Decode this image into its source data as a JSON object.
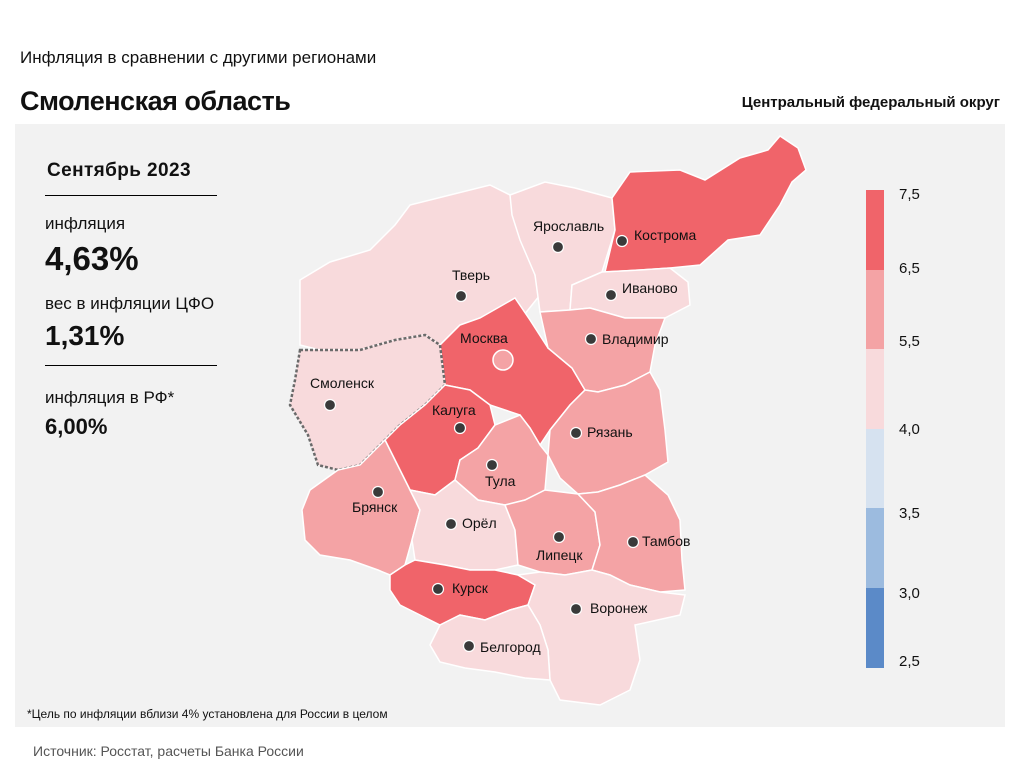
{
  "header": {
    "subtitle": "Инфляция в сравнении с другими регионами",
    "title": "Смоленская область",
    "district": "Центральный федеральный округ"
  },
  "stats": {
    "period": "Сентябрь 2023",
    "inflation_label": "инфляция",
    "inflation_value": "4,63%",
    "weight_label": "вес в инфляции ЦФО",
    "weight_value": "1,31%",
    "rf_label": "инфляция в РФ*",
    "rf_value": "6,00%"
  },
  "legend": {
    "ticks": [
      "7,5",
      "6,5",
      "5,5",
      "4,0",
      "3,5",
      "3,0",
      "2,5"
    ],
    "bins": [
      {
        "from": 6.5,
        "to": 7.5,
        "color": "#f0646a"
      },
      {
        "from": 5.5,
        "to": 6.5,
        "color": "#f4a3a5"
      },
      {
        "from": 4.0,
        "to": 5.5,
        "color": "#f8dadc"
      },
      {
        "from": 3.5,
        "to": 4.0,
        "color": "#d6e2f0"
      },
      {
        "from": 3.0,
        "to": 3.5,
        "color": "#9cbbdf"
      },
      {
        "from": 2.5,
        "to": 3.0,
        "color": "#5b8ac8"
      }
    ]
  },
  "regions": [
    {
      "name": "Смоленск",
      "color": "#f8dadc",
      "highlighted": true
    },
    {
      "name": "Тверь",
      "color": "#f8dadc"
    },
    {
      "name": "Ярославль",
      "color": "#f8dadc"
    },
    {
      "name": "Кострома",
      "color": "#f0646a"
    },
    {
      "name": "Иваново",
      "color": "#f8dadc"
    },
    {
      "name": "Москва",
      "color": "#f0646a"
    },
    {
      "name": "Владимир",
      "color": "#f4a3a5"
    },
    {
      "name": "Калуга",
      "color": "#f0646a"
    },
    {
      "name": "Рязань",
      "color": "#f4a3a5"
    },
    {
      "name": "Тула",
      "color": "#f4a3a5"
    },
    {
      "name": "Брянск",
      "color": "#f4a3a5"
    },
    {
      "name": "Орёл",
      "color": "#f8dadc"
    },
    {
      "name": "Липецк",
      "color": "#f4a3a5"
    },
    {
      "name": "Тамбов",
      "color": "#f4a3a5"
    },
    {
      "name": "Курск",
      "color": "#f0646a"
    },
    {
      "name": "Воронеж",
      "color": "#f8dadc"
    },
    {
      "name": "Белгород",
      "color": "#f8dadc"
    }
  ],
  "footnote": "*Цель по инфляции вблизи 4% установлена для России в целом",
  "source": "Источник: Росстат, расчеты Банка России"
}
